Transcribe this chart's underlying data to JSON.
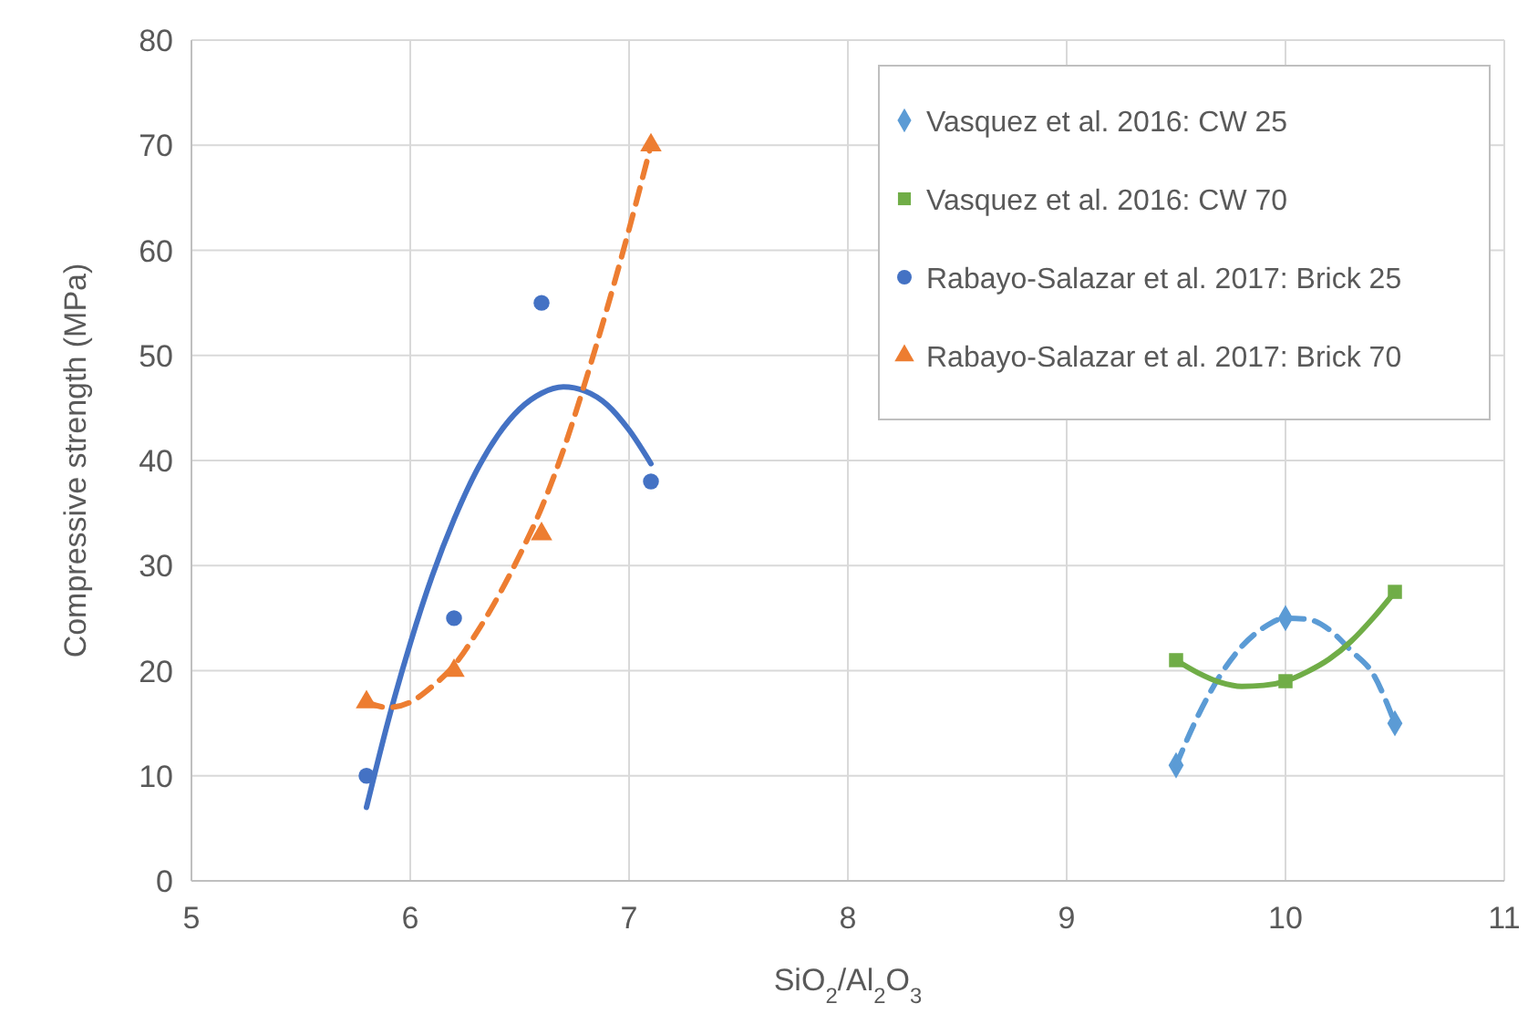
{
  "chart_data": {
    "type": "scatter",
    "xlabel": "SiO$_{2}$/Al$_{2}$O$_{3}$",
    "ylabel": "Compressive strength (MPa)",
    "xlim": [
      5,
      11
    ],
    "xticks": [
      5,
      6,
      7,
      8,
      9,
      10,
      11
    ],
    "ylim": [
      0,
      80
    ],
    "yticks": [
      0,
      10,
      20,
      30,
      40,
      50,
      60,
      70,
      80
    ],
    "grid": true,
    "legend": "top right",
    "series": [
      {
        "name": "Vasquez et al. 2016: CW 25",
        "color": "#5b9bd5",
        "marker": "diamond",
        "x": [
          9.5,
          10,
          10.5
        ],
        "values": [
          11,
          25,
          15
        ]
      },
      {
        "name": "Vasquez et al. 2016: CW 70",
        "color": "#70ad47",
        "marker": "square",
        "x": [
          9.5,
          10,
          10.5
        ],
        "values": [
          21,
          19,
          27.5
        ]
      },
      {
        "name": "Rabayo-Salazar et al. 2017: Brick 25",
        "color": "#4472c4",
        "marker": "circle",
        "x": [
          5.8,
          6.2,
          6.6,
          7.1
        ],
        "values": [
          10,
          25,
          55,
          38
        ]
      },
      {
        "name": "Rabayo-Salazar et al. 2017: Brick 70",
        "color": "#ed7d31",
        "marker": "triangle",
        "x": [
          5.8,
          6.2,
          6.6,
          7.1
        ],
        "values": [
          17,
          20,
          33,
          70
        ]
      },
      {
        "type": "line",
        "color": "#5b9bd5",
        "marker": "none",
        "line_style": "dashed",
        "x": [
          9.5,
          9.6,
          9.7,
          9.8,
          9.9,
          10,
          10.1,
          10.2,
          10.3,
          10.4,
          10.5
        ],
        "values": [
          11,
          15.7,
          19.5,
          22.3,
          24.1,
          25,
          24.9,
          23.9,
          21.9,
          19.7,
          15
        ]
      },
      {
        "type": "line",
        "color": "#70ad47",
        "marker": "none",
        "line_style": "solid",
        "x": [
          9.5,
          9.6,
          9.7,
          9.8,
          9.9,
          10,
          10.1,
          10.2,
          10.3,
          10.4,
          10.5
        ],
        "values": [
          21,
          19.8,
          18.9,
          18.5,
          18.6,
          19,
          19.9,
          21.1,
          22.8,
          25,
          27.5
        ]
      },
      {
        "type": "line",
        "color": "#4472c4",
        "marker": "none",
        "line_style": "solid",
        "x": [
          5.8,
          5.9,
          6,
          6.1,
          6.2,
          6.3,
          6.4,
          6.5,
          6.6,
          6.7,
          6.8,
          6.9,
          7,
          7.1
        ],
        "values": [
          7,
          15.3,
          22.6,
          29,
          34.4,
          38.9,
          42.4,
          44.9,
          46.4,
          47,
          46.6,
          45.3,
          42.9,
          39.7
        ]
      },
      {
        "type": "line",
        "color": "#ed7d31",
        "marker": "none",
        "line_style": "dashed",
        "x": [
          5.8,
          5.9,
          6,
          6.1,
          6.2,
          6.3,
          6.4,
          6.5,
          6.6,
          6.7,
          6.8,
          6.9,
          7,
          7.1
        ],
        "values": [
          17,
          16.5,
          17,
          18.5,
          20.5,
          23.5,
          27,
          31,
          35.5,
          41,
          47.5,
          54.5,
          62,
          70
        ]
      }
    ]
  }
}
